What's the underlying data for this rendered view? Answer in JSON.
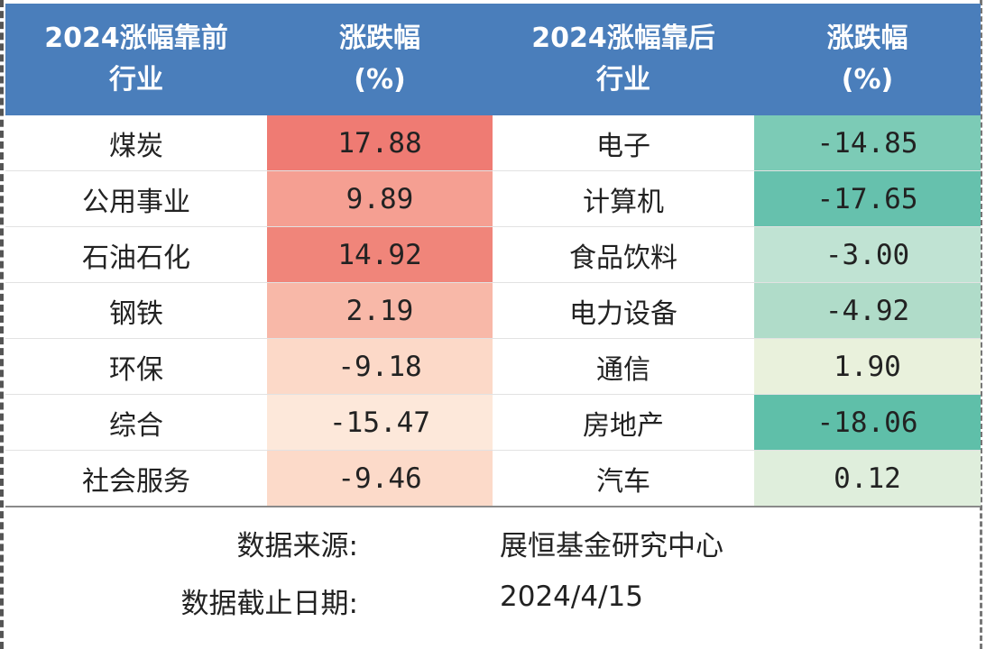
{
  "chart_data": {
    "type": "table",
    "columns": [
      "2024涨幅靠前行业",
      "涨跌幅(%)",
      "2024涨幅靠后行业",
      "涨跌幅(%)"
    ],
    "headers": [
      [
        "2024涨幅靠前",
        "行业"
      ],
      [
        "涨跌幅",
        "(%)"
      ],
      [
        "2024涨幅靠后",
        "行业"
      ],
      [
        "涨跌幅",
        "(%)"
      ]
    ],
    "rows": [
      {
        "top_industry": "煤炭",
        "top_change": "17.88",
        "top_color": "#ef7b73",
        "bottom_industry": "电子",
        "bottom_change": "-14.85",
        "bottom_color": "#7ccbb6"
      },
      {
        "top_industry": "公用事业",
        "top_change": "9.89",
        "top_color": "#f59f92",
        "bottom_industry": "计算机",
        "bottom_change": "-17.65",
        "bottom_color": "#66c1ad"
      },
      {
        "top_industry": "石油石化",
        "top_change": "14.92",
        "top_color": "#f0857a",
        "bottom_industry": "食品饮料",
        "bottom_change": "-3.00",
        "bottom_color": "#c0e3d3"
      },
      {
        "top_industry": "钢铁",
        "top_change": "2.19",
        "top_color": "#f8b8a8",
        "bottom_industry": "电力设备",
        "bottom_change": "-4.92",
        "bottom_color": "#b0dcc9"
      },
      {
        "top_industry": "环保",
        "top_change": "-9.18",
        "top_color": "#fcd9c8",
        "bottom_industry": "通信",
        "bottom_change": "1.90",
        "bottom_color": "#e9f1dc"
      },
      {
        "top_industry": "综合",
        "top_change": "-15.47",
        "top_color": "#fde8da",
        "bottom_industry": "房地产",
        "bottom_change": "-18.06",
        "bottom_color": "#5fbfa9"
      },
      {
        "top_industry": "社会服务",
        "top_change": "-9.46",
        "top_color": "#fcdac9",
        "bottom_industry": "汽车",
        "bottom_change": "0.12",
        "bottom_color": "#dfeedc"
      }
    ]
  },
  "footer": {
    "source_label": "数据来源:",
    "source_value": "展恒基金研究中心",
    "date_label": "数据截止日期:",
    "date_value": "2024/4/15"
  },
  "colors": {
    "header_bg": "#4a7ebb",
    "header_text": "#ffffff"
  }
}
